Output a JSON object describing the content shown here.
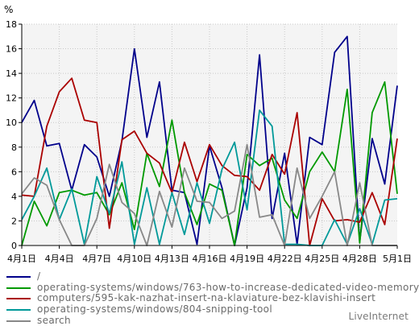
{
  "chart_data": {
    "type": "line",
    "ylabel": "%",
    "ylim": [
      0,
      18
    ],
    "yticks": [
      0,
      2,
      4,
      6,
      8,
      10,
      12,
      14,
      16,
      18
    ],
    "xtick_labels": [
      "4月1日",
      "4月4日",
      "4月7日",
      "4月10日",
      "4月13日",
      "4月16日",
      "4月19日",
      "4月22日",
      "4月25日",
      "4月28日",
      "5月1日"
    ],
    "x_count": 31,
    "grid": true,
    "legend_position": "bottom",
    "background": "#f4f4f4",
    "series": [
      {
        "name": "/",
        "color": "#00008b",
        "values": [
          10,
          11.8,
          8.1,
          8.3,
          4.5,
          8.2,
          7.2,
          4.0,
          8.5,
          16.0,
          8.8,
          13.3,
          4.5,
          4.3,
          0.1,
          8.1,
          4.7,
          0.0,
          4.7,
          15.5,
          2.2,
          7.5,
          0.1,
          8.8,
          8.2,
          15.7,
          17.0,
          0.3,
          8.7,
          5.0,
          13.0
        ]
      },
      {
        "name": "operating-systems/windows/763-how-to-increase-dedicated-video-memory-in-windows-10",
        "color": "#009900",
        "values": [
          0.0,
          3.6,
          1.6,
          4.3,
          4.5,
          4.1,
          4.3,
          2.5,
          5.1,
          1.3,
          7.5,
          4.8,
          10.2,
          4.3,
          1.7,
          5.0,
          4.5,
          0.0,
          7.4,
          6.5,
          7.1,
          3.7,
          2.2,
          6.0,
          7.6,
          6.0,
          12.7,
          0.2,
          10.8,
          13.3,
          4.2
        ]
      },
      {
        "name": "computers/595-kak-nazhat-insert-na-klaviature-bez-klavishi-insert",
        "color": "#aa0000",
        "values": [
          4.1,
          4.0,
          9.7,
          12.5,
          13.6,
          10.2,
          10.0,
          1.4,
          8.6,
          9.3,
          7.5,
          6.7,
          4.3,
          8.4,
          5.2,
          8.2,
          6.5,
          5.7,
          5.6,
          4.5,
          7.4,
          5.8,
          10.8,
          0.0,
          3.8,
          2.0,
          2.1,
          1.9,
          4.3,
          1.7,
          8.7
        ]
      },
      {
        "name": "operating-systems/windows/804-snipping-tool",
        "color": "#009999",
        "values": [
          2.1,
          4.0,
          6.3,
          2.1,
          4.6,
          0.1,
          5.6,
          2.6,
          6.8,
          0.1,
          4.7,
          0.1,
          4.3,
          0.9,
          5.1,
          1.8,
          6.2,
          8.4,
          2.9,
          11.0,
          9.7,
          0.1,
          0.1,
          0.0,
          0.0,
          2.1,
          0.1,
          3.0,
          0.1,
          3.7,
          3.8
        ]
      },
      {
        "name": "search",
        "color": "#888888",
        "values": [
          4.2,
          5.5,
          4.9,
          2.1,
          0.0,
          0.0,
          2.2,
          6.6,
          3.5,
          2.6,
          0.0,
          4.4,
          1.5,
          6.3,
          3.6,
          3.5,
          2.2,
          2.8,
          8.2,
          2.3,
          2.5,
          0.0,
          6.3,
          2.2,
          4.0,
          6.0,
          0.0,
          5.1,
          0.0,
          0.0,
          0.0
        ]
      }
    ]
  },
  "credit": "LiveInternet"
}
